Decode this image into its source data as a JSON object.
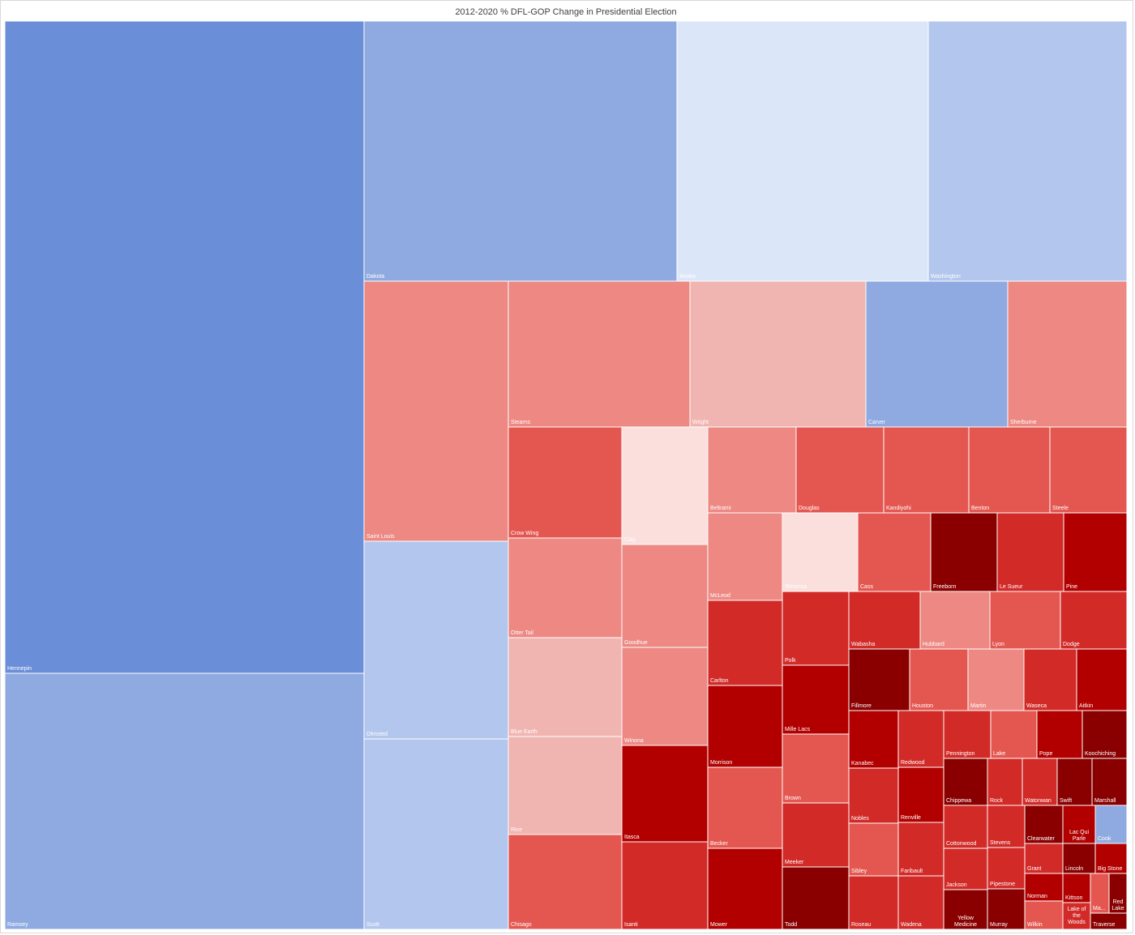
{
  "chart_data": {
    "type": "treemap",
    "title": "2012-2020 % DFL-GOP Change in Presidential Election",
    "colors": {
      "blue_dark": "#6a8ed7",
      "blue_mid": "#8eaae1",
      "blue_light": "#b3c6ed",
      "blue_pale": "#dce6f9",
      "red_pale": "#fadfdd",
      "red_light": "#f0b4b1",
      "red_mid": "#ed8883",
      "red_bright": "#e45751",
      "red_strong": "#d12a27",
      "red_deep": "#b20000",
      "red_darkest": "#8a0000"
    },
    "items": [
      {
        "label": "Hennepin",
        "color": "blue_dark"
      },
      {
        "label": "Ramsey",
        "color": "blue_mid"
      },
      {
        "label": "Dakota",
        "color": "blue_mid"
      },
      {
        "label": "Anoka",
        "color": "blue_pale"
      },
      {
        "label": "Washington",
        "color": "blue_light"
      },
      {
        "label": "Saint Louis",
        "color": "red_mid"
      },
      {
        "label": "Olmsted",
        "color": "blue_light"
      },
      {
        "label": "Scott",
        "color": "blue_light"
      },
      {
        "label": "Stearns",
        "color": "red_mid"
      },
      {
        "label": "Wright",
        "color": "red_light"
      },
      {
        "label": "Carver",
        "color": "blue_mid"
      },
      {
        "label": "Sherburne",
        "color": "red_mid"
      },
      {
        "label": "Crow Wing",
        "color": "red_bright"
      },
      {
        "label": "Otter Tail",
        "color": "red_mid"
      },
      {
        "label": "Blue Earth",
        "color": "red_light"
      },
      {
        "label": "Rice",
        "color": "red_light"
      },
      {
        "label": "Chisago",
        "color": "red_bright"
      },
      {
        "label": "Clay",
        "color": "red_pale"
      },
      {
        "label": "Goodhue",
        "color": "red_mid"
      },
      {
        "label": "Winona",
        "color": "red_mid"
      },
      {
        "label": "Itasca",
        "color": "red_deep"
      },
      {
        "label": "Isanti",
        "color": "red_strong"
      },
      {
        "label": "Beltrami",
        "color": "red_mid"
      },
      {
        "label": "Douglas",
        "color": "red_bright"
      },
      {
        "label": "Kandiyohi",
        "color": "red_bright"
      },
      {
        "label": "Benton",
        "color": "red_bright"
      },
      {
        "label": "Steele",
        "color": "red_bright"
      },
      {
        "label": "McLeod",
        "color": "red_mid"
      },
      {
        "label": "Winonsa",
        "color": "red_pale"
      },
      {
        "label": "Cass",
        "color": "red_bright"
      },
      {
        "label": "Freeborn",
        "color": "red_darkest"
      },
      {
        "label": "Le Sueur",
        "color": "red_strong"
      },
      {
        "label": "Pine",
        "color": "red_deep"
      },
      {
        "label": "Carlton",
        "color": "red_strong"
      },
      {
        "label": "Morrison",
        "color": "red_deep"
      },
      {
        "label": "Becker",
        "color": "red_bright"
      },
      {
        "label": "Mower",
        "color": "red_deep"
      },
      {
        "label": "Polk",
        "color": "red_strong"
      },
      {
        "label": "Mille Lacs",
        "color": "red_deep"
      },
      {
        "label": "Brown",
        "color": "red_bright"
      },
      {
        "label": "Meeker",
        "color": "red_strong"
      },
      {
        "label": "Todd",
        "color": "red_darkest"
      },
      {
        "label": "Wabasha",
        "color": "red_strong"
      },
      {
        "label": "Hubbard",
        "color": "red_mid"
      },
      {
        "label": "Lyon",
        "color": "red_bright"
      },
      {
        "label": "Dodge",
        "color": "red_strong"
      },
      {
        "label": "Fillmore",
        "color": "red_darkest"
      },
      {
        "label": "Houston",
        "color": "red_bright"
      },
      {
        "label": "Martin",
        "color": "red_mid"
      },
      {
        "label": "Waseca",
        "color": "red_strong"
      },
      {
        "label": "Aitkin",
        "color": "red_deep"
      },
      {
        "label": "Kanabec",
        "color": "red_deep"
      },
      {
        "label": "Redwood",
        "color": "red_strong"
      },
      {
        "label": "Pennington",
        "color": "red_strong"
      },
      {
        "label": "Lake",
        "color": "red_bright"
      },
      {
        "label": "Pope",
        "color": "red_deep"
      },
      {
        "label": "Koochiching",
        "color": "red_darkest"
      },
      {
        "label": "Nobles",
        "color": "red_strong"
      },
      {
        "label": "Renville",
        "color": "red_deep"
      },
      {
        "label": "Sibley",
        "color": "red_bright"
      },
      {
        "label": "Faribault",
        "color": "red_strong"
      },
      {
        "label": "Roseau",
        "color": "red_strong"
      },
      {
        "label": "Wadena",
        "color": "red_strong"
      },
      {
        "label": "Chippewa",
        "color": "red_darkest"
      },
      {
        "label": "Rock",
        "color": "red_strong"
      },
      {
        "label": "Watonwan",
        "color": "red_strong"
      },
      {
        "label": "Swift",
        "color": "red_darkest"
      },
      {
        "label": "Marshall",
        "color": "red_darkest"
      },
      {
        "label": "Cottonwood",
        "color": "red_strong"
      },
      {
        "label": "Stevens",
        "color": "red_strong"
      },
      {
        "label": "Jackson",
        "color": "red_strong"
      },
      {
        "label": "Pipestone",
        "color": "red_strong"
      },
      {
        "label": "Yellow Medicine",
        "color": "red_darkest"
      },
      {
        "label": "Murray",
        "color": "red_darkest"
      },
      {
        "label": "Clearwater",
        "color": "red_darkest"
      },
      {
        "label": "Lac Qui Parle",
        "color": "red_deep"
      },
      {
        "label": "Cook",
        "color": "blue_mid"
      },
      {
        "label": "Grant",
        "color": "red_strong"
      },
      {
        "label": "Lincoln",
        "color": "red_darkest"
      },
      {
        "label": "Big Stone",
        "color": "red_deep"
      },
      {
        "label": "Norman",
        "color": "red_deep"
      },
      {
        "label": "Kittson",
        "color": "red_deep"
      },
      {
        "label": "Ma...",
        "color": "red_bright"
      },
      {
        "label": "Red Lake",
        "color": "red_darkest"
      },
      {
        "label": "Wilkin",
        "color": "red_bright"
      },
      {
        "label": "Lake of the Woods",
        "color": "red_strong"
      },
      {
        "label": "Traverse",
        "color": "red_darkest"
      }
    ]
  }
}
